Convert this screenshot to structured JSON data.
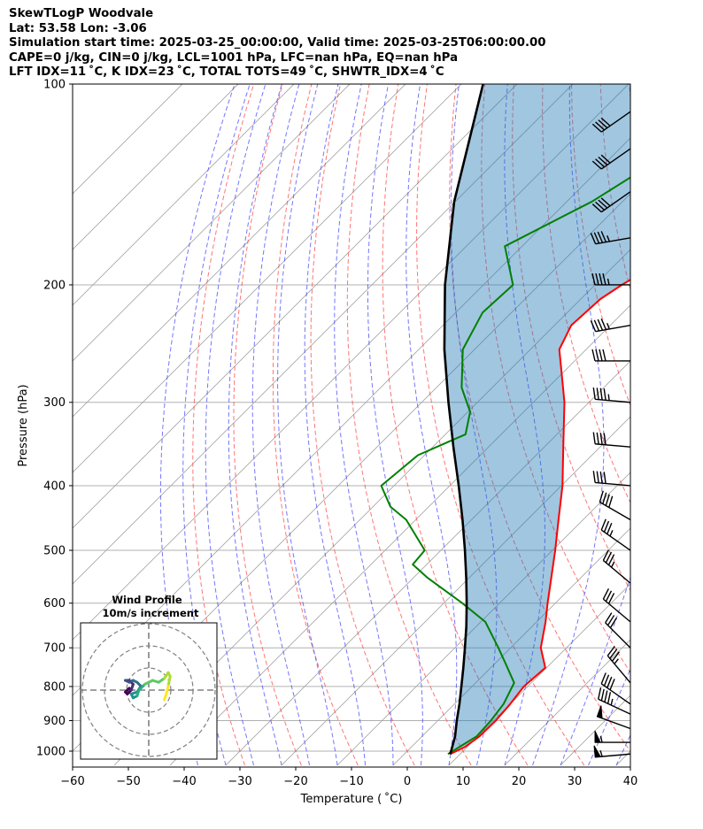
{
  "header": {
    "line1": "SkewTLogP Woodvale",
    "line2": "Lat: 53.58   Lon: -3.06",
    "line3": "Simulation start time: 2025-03-25_00:00:00, Valid time: 2025-03-25T06:00:00.00",
    "line4": "CAPE=0 j/kg, CIN=0 j/kg, LCL=1001 hPa, LFC=nan hPa, EQ=nan hPa",
    "line5": "LFT IDX=11 ˚C, K IDX=23 ˚C, TOTAL TOTS=49 ˚C, SHWTR_IDX=4 ˚C"
  },
  "chart_data": {
    "type": "line",
    "xlabel": "Temperature ( ˚C)",
    "ylabel": "Pressure (hPa)",
    "xlim": [
      -60,
      40
    ],
    "ylim": [
      1050,
      100
    ],
    "y_scale": "log",
    "x_ticks": [
      "−60",
      "−50",
      "−40",
      "−30",
      "−20",
      "−10",
      "0",
      "10",
      "20",
      "30",
      "40"
    ],
    "y_ticks": [
      "1000",
      "900",
      "800",
      "700",
      "600",
      "500",
      "400",
      "300",
      "200",
      "100"
    ],
    "y_tick_values": [
      1000,
      900,
      800,
      700,
      600,
      500,
      400,
      300,
      200,
      100
    ],
    "series": [
      {
        "name": "temperature",
        "color": "#ff0000",
        "points": [
          {
            "p": 1010,
            "t": 8.2
          },
          {
            "p": 985,
            "t": 9.6
          },
          {
            "p": 950,
            "t": 10.3
          },
          {
            "p": 900,
            "t": 10.4
          },
          {
            "p": 850,
            "t": 10.0
          },
          {
            "p": 800,
            "t": 9.3
          },
          {
            "p": 750,
            "t": 9.8
          },
          {
            "p": 700,
            "t": 5.4
          },
          {
            "p": 640,
            "t": 1.6
          },
          {
            "p": 600,
            "t": -1.4
          },
          {
            "p": 500,
            "t": -9.5
          },
          {
            "p": 450,
            "t": -14.4
          },
          {
            "p": 400,
            "t": -19.8
          },
          {
            "p": 350,
            "t": -26.6
          },
          {
            "p": 300,
            "t": -34.4
          },
          {
            "p": 270,
            "t": -40.4
          },
          {
            "p": 250,
            "t": -44.8
          },
          {
            "p": 230,
            "t": -47.0
          },
          {
            "p": 210,
            "t": -46.5
          },
          {
            "p": 200,
            "t": -45.2
          },
          {
            "p": 185,
            "t": -42.4
          },
          {
            "p": 165,
            "t": -40.1
          },
          {
            "p": 155,
            "t": -40.1
          },
          {
            "p": 140,
            "t": -42.1
          },
          {
            "p": 115,
            "t": -45.9
          },
          {
            "p": 100,
            "t": -49.5
          }
        ]
      },
      {
        "name": "dewpoint",
        "color": "#008000",
        "points": [
          {
            "p": 1010,
            "t": 7.8
          },
          {
            "p": 985,
            "t": 8.6
          },
          {
            "p": 950,
            "t": 9.8
          },
          {
            "p": 900,
            "t": 9.5
          },
          {
            "p": 850,
            "t": 8.8
          },
          {
            "p": 790,
            "t": 6.9
          },
          {
            "p": 740,
            "t": 2.0
          },
          {
            "p": 700,
            "t": -2.2
          },
          {
            "p": 640,
            "t": -9.2
          },
          {
            "p": 600,
            "t": -16.7
          },
          {
            "p": 550,
            "t": -27.4
          },
          {
            "p": 525,
            "t": -32.5
          },
          {
            "p": 500,
            "t": -32.9
          },
          {
            "p": 450,
            "t": -41.7
          },
          {
            "p": 430,
            "t": -46.9
          },
          {
            "p": 400,
            "t": -52.3
          },
          {
            "p": 360,
            "t": -51.2
          },
          {
            "p": 335,
            "t": -46.4
          },
          {
            "p": 310,
            "t": -49.6
          },
          {
            "p": 285,
            "t": -55.5
          },
          {
            "p": 250,
            "t": -62.1
          },
          {
            "p": 220,
            "t": -65.2
          },
          {
            "p": 200,
            "t": -64.7
          },
          {
            "p": 175,
            "t": -73.1
          },
          {
            "p": 150,
            "t": -65.5
          },
          {
            "p": 120,
            "t": -58.6
          },
          {
            "p": 100,
            "t": -54.1
          }
        ]
      },
      {
        "name": "parcel",
        "color": "#000000",
        "points": [
          {
            "p": 1010,
            "t": 8.2
          },
          {
            "p": 1001,
            "t": 7.9
          },
          {
            "p": 950,
            "t": 5.9
          },
          {
            "p": 900,
            "t": 3.4
          },
          {
            "p": 850,
            "t": 0.9
          },
          {
            "p": 800,
            "t": -1.9
          },
          {
            "p": 750,
            "t": -4.9
          },
          {
            "p": 700,
            "t": -8.2
          },
          {
            "p": 650,
            "t": -11.8
          },
          {
            "p": 600,
            "t": -15.9
          },
          {
            "p": 550,
            "t": -20.5
          },
          {
            "p": 500,
            "t": -25.7
          },
          {
            "p": 450,
            "t": -31.6
          },
          {
            "p": 400,
            "t": -38.4
          },
          {
            "p": 350,
            "t": -46.3
          },
          {
            "p": 300,
            "t": -55.2
          },
          {
            "p": 250,
            "t": -65.4
          },
          {
            "p": 200,
            "t": -76.9
          },
          {
            "p": 150,
            "t": -90.2
          },
          {
            "p": 100,
            "t": -106.1
          }
        ]
      }
    ],
    "wind_barbs": [
      {
        "p": 1010,
        "speed_kt": 55,
        "dir_deg": 265
      },
      {
        "p": 970,
        "speed_kt": 55,
        "dir_deg": 270
      },
      {
        "p": 925,
        "speed_kt": 50,
        "dir_deg": 290
      },
      {
        "p": 880,
        "speed_kt": 45,
        "dir_deg": 295
      },
      {
        "p": 850,
        "speed_kt": 40,
        "dir_deg": 305
      },
      {
        "p": 790,
        "speed_kt": 35,
        "dir_deg": 320
      },
      {
        "p": 700,
        "speed_kt": 30,
        "dir_deg": 315
      },
      {
        "p": 640,
        "speed_kt": 30,
        "dir_deg": 310
      },
      {
        "p": 560,
        "speed_kt": 35,
        "dir_deg": 310
      },
      {
        "p": 500,
        "speed_kt": 35,
        "dir_deg": 305
      },
      {
        "p": 450,
        "speed_kt": 40,
        "dir_deg": 300
      },
      {
        "p": 400,
        "speed_kt": 40,
        "dir_deg": 275
      },
      {
        "p": 350,
        "speed_kt": 40,
        "dir_deg": 275
      },
      {
        "p": 300,
        "speed_kt": 45,
        "dir_deg": 275
      },
      {
        "p": 260,
        "speed_kt": 40,
        "dir_deg": 270
      },
      {
        "p": 230,
        "speed_kt": 45,
        "dir_deg": 260
      },
      {
        "p": 200,
        "speed_kt": 45,
        "dir_deg": 270
      },
      {
        "p": 170,
        "speed_kt": 45,
        "dir_deg": 260
      },
      {
        "p": 145,
        "speed_kt": 40,
        "dir_deg": 235
      },
      {
        "p": 125,
        "speed_kt": 40,
        "dir_deg": 235
      },
      {
        "p": 110,
        "speed_kt": 40,
        "dir_deg": 235
      }
    ],
    "hodograph": {
      "title_line1": "Wind Profile",
      "title_line2": "10m/s increment",
      "ring_increment_ms": 10,
      "colormap": "viridis",
      "trace": [
        [
          8,
          -5
        ],
        [
          9,
          -2
        ],
        [
          10,
          2
        ],
        [
          11,
          7
        ],
        [
          10,
          9
        ],
        [
          8,
          6
        ],
        [
          5,
          4
        ],
        [
          2,
          5
        ],
        [
          -2,
          3
        ],
        [
          -5,
          0
        ],
        [
          -6,
          -3
        ],
        [
          -8,
          -4
        ],
        [
          -9,
          -2
        ],
        [
          -6,
          -1
        ],
        [
          -4,
          2
        ],
        [
          -6,
          4
        ],
        [
          -8,
          5
        ],
        [
          -10,
          4
        ],
        [
          -12,
          5
        ],
        [
          -10,
          5
        ],
        [
          -8,
          3
        ],
        [
          -9,
          0
        ],
        [
          -11,
          -2
        ],
        [
          -12,
          -1
        ],
        [
          -10,
          1
        ]
      ]
    }
  }
}
